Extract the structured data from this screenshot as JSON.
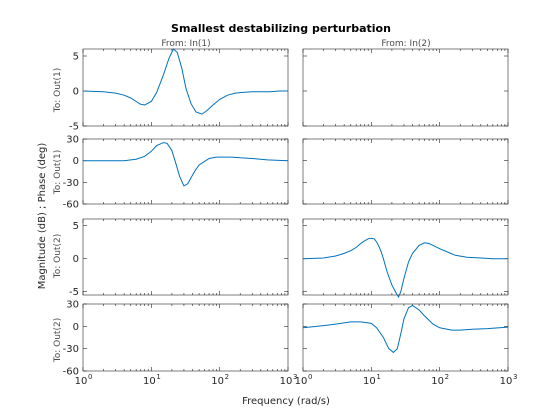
{
  "chart_data": {
    "type": "line",
    "title": "Smallest destabilizing perturbation",
    "xlabel": "Frequency  (rad/s)",
    "ylabel": "Magnitude (dB) ; Phase (deg)",
    "xscale": "log",
    "xlim": [
      1,
      1000
    ],
    "xtick_decades": [
      0,
      1,
      2,
      3
    ],
    "xtick_base": "10",
    "columns": [
      {
        "key": "in1",
        "label": "From: In(1)"
      },
      {
        "key": "in2",
        "label": "From: In(2)"
      }
    ],
    "rows": [
      {
        "kind": "magnitude",
        "label": "To: Out(1)",
        "ylim": [
          -5,
          6
        ],
        "yticks": [
          "5",
          "0",
          "-5"
        ],
        "ytick_values": [
          5,
          0,
          -5
        ]
      },
      {
        "kind": "phase",
        "label": "To: Out(1)",
        "ylim": [
          -60,
          30
        ],
        "yticks": [
          "30",
          "0",
          "-30",
          "-60"
        ],
        "ytick_values": [
          30,
          0,
          -30,
          -60
        ]
      },
      {
        "kind": "magnitude",
        "label": "To: Out(2)",
        "ylim": [
          -5.5,
          6
        ],
        "yticks": [
          "5",
          "0",
          "-5"
        ],
        "ytick_values": [
          5,
          0,
          -5
        ]
      },
      {
        "kind": "phase",
        "label": "To: Out(2)",
        "ylim": [
          -60,
          30
        ],
        "yticks": [
          "30",
          "0",
          "-30",
          "-60"
        ],
        "ytick_values": [
          30,
          0,
          -30,
          -60
        ]
      }
    ],
    "line_color": "#0072bd",
    "series": [
      {
        "row": 0,
        "col": 0,
        "x": [
          1,
          2,
          3,
          4,
          5,
          6,
          7,
          8,
          10,
          12,
          15,
          18,
          21,
          24,
          28,
          32,
          38,
          45,
          55,
          65,
          80,
          100,
          130,
          170,
          220,
          300,
          400,
          550,
          750,
          1000
        ],
        "y": [
          0,
          -0.1,
          -0.3,
          -0.6,
          -1.0,
          -1.5,
          -1.9,
          -2.0,
          -1.5,
          -0.2,
          2.3,
          4.6,
          6.0,
          5.5,
          3.2,
          0.4,
          -1.8,
          -3.0,
          -3.3,
          -2.8,
          -2.0,
          -1.2,
          -0.6,
          -0.3,
          -0.2,
          -0.1,
          -0.1,
          -0.1,
          0,
          0
        ]
      },
      {
        "row": 1,
        "col": 0,
        "x": [
          1,
          2,
          3,
          4,
          5,
          6,
          8,
          10,
          12,
          15,
          17,
          20,
          23,
          26,
          30,
          34,
          40,
          45,
          50,
          60,
          70,
          80,
          90,
          100,
          150,
          200,
          300,
          500,
          1000
        ],
        "y": [
          0,
          0,
          0,
          0,
          1,
          2,
          6,
          13,
          21,
          25,
          24,
          14,
          -5,
          -22,
          -35,
          -32,
          -20,
          -12,
          -6,
          -1,
          3,
          4,
          5,
          5,
          5,
          4,
          3,
          1,
          0
        ]
      },
      {
        "row": 2,
        "col": 1,
        "x": [
          1,
          2,
          3,
          4,
          5,
          6,
          7,
          8,
          9,
          10,
          11,
          12,
          13,
          14,
          15,
          17,
          20,
          23,
          25,
          27,
          30,
          35,
          40,
          50,
          60,
          70,
          80,
          100,
          130,
          170,
          250,
          400,
          600,
          1000
        ],
        "y": [
          0,
          0.1,
          0.4,
          0.8,
          1.2,
          1.7,
          2.3,
          2.7,
          3.0,
          3.1,
          3.0,
          2.5,
          1.8,
          1.0,
          0.0,
          -2.0,
          -4.0,
          -5.2,
          -5.8,
          -5.0,
          -3.0,
          -0.5,
          0.8,
          2.0,
          2.4,
          2.3,
          2.0,
          1.5,
          1.0,
          0.5,
          0.2,
          0.1,
          0,
          0
        ]
      },
      {
        "row": 3,
        "col": 1,
        "x": [
          1,
          2,
          3,
          5,
          7,
          10,
          12,
          15,
          18,
          21,
          24,
          27,
          30,
          35,
          40,
          50,
          60,
          80,
          100,
          150,
          200,
          300,
          500,
          1000
        ],
        "y": [
          -2,
          1,
          3,
          6,
          6,
          4,
          -2,
          -15,
          -30,
          -35,
          -30,
          -10,
          10,
          25,
          28,
          22,
          14,
          3,
          -2,
          -5,
          -5,
          -4,
          -3,
          -1
        ]
      }
    ]
  }
}
